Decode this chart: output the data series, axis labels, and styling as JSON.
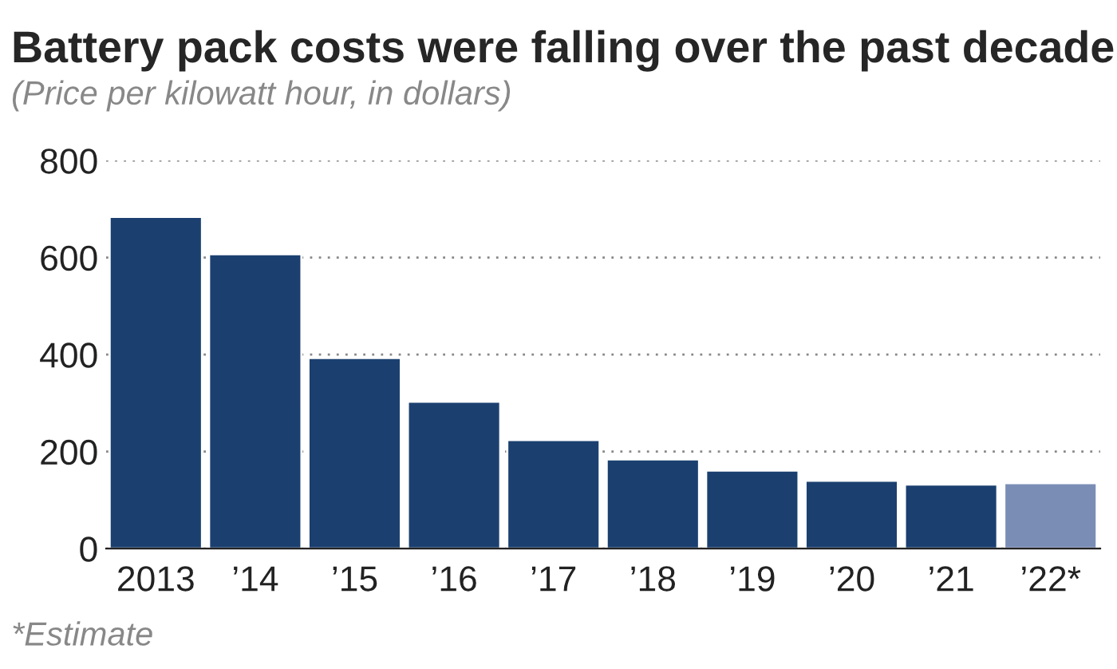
{
  "chart_data": {
    "type": "bar",
    "title": "Battery pack costs were falling over the past decade",
    "subtitle": "(Price per kilowatt hour, in dollars)",
    "categories": [
      "2013",
      "’14",
      "’15",
      "’16",
      "’17",
      "’18",
      "’19",
      "’20",
      "’21",
      "’22*"
    ],
    "values": [
      684,
      607,
      393,
      303,
      224,
      184,
      161,
      140,
      132,
      135
    ],
    "colors": [
      "#1b4070",
      "#1b4070",
      "#1b4070",
      "#1b4070",
      "#1b4070",
      "#1b4070",
      "#1b4070",
      "#1b4070",
      "#1b4070",
      "#7a8db5"
    ],
    "ylim": [
      0,
      800
    ],
    "yticks": [
      0,
      200,
      400,
      600,
      800
    ],
    "grid": "y",
    "annotations": [
      "*Estimate"
    ]
  }
}
